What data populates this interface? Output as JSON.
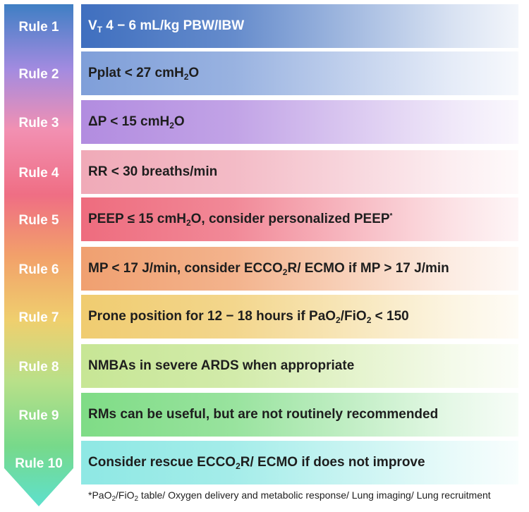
{
  "rules": [
    {
      "label": "Rule 1",
      "text": [
        "V",
        {
          "sub": "T"
        },
        " 4 − 6 mL/kg PBW/IBW"
      ]
    },
    {
      "label": "Rule 2",
      "text": [
        "Pplat < 27 cmH",
        {
          "sub": "2"
        },
        "O"
      ]
    },
    {
      "label": "Rule 3",
      "text": [
        "ΔP < 15 cmH",
        {
          "sub": "2"
        },
        "O"
      ]
    },
    {
      "label": "Rule 4",
      "text": [
        "RR < 30 breaths/min"
      ]
    },
    {
      "label": "Rule 5",
      "text": [
        "PEEP ≤ 15 cmH",
        {
          "sub": "2"
        },
        "O, consider personalized PEEP",
        {
          "sup": "*"
        }
      ]
    },
    {
      "label": "Rule 6",
      "text": [
        "MP < 17 J/min, consider ECCO",
        {
          "sub": "2"
        },
        "R/ ECMO if MP > 17 J/min"
      ]
    },
    {
      "label": "Rule 7",
      "text": [
        "Prone position for 12 − 18 hours if PaO",
        {
          "sub": "2"
        },
        "/FiO",
        {
          "sub": "2"
        },
        " < 150"
      ]
    },
    {
      "label": "Rule 8",
      "text": [
        "NMBAs in severe ARDS when appropriate"
      ]
    },
    {
      "label": "Rule 9",
      "text": [
        "RMs can be useful, but are not routinely recommended"
      ]
    },
    {
      "label": "Rule 10",
      "text": [
        "Consider rescue ECCO",
        {
          "sub": "2"
        },
        "R/ ECMO if does not improve"
      ]
    }
  ],
  "footnote": [
    "*PaO",
    {
      "sub": "2"
    },
    "/FiO",
    {
      "sub": "2"
    },
    " table/ Oxygen delivery and metabolic response/ Lung imaging/ Lung recruitment"
  ],
  "colors": {
    "arrow_gradient": [
      "#3f7fc4",
      "#a38be0",
      "#f290b2",
      "#ef6e84",
      "#f2a06a",
      "#efcf6e",
      "#b9e089",
      "#77d98a",
      "#5ee0cd"
    ],
    "row_colors": [
      "#3f6fbf",
      "#7f9fd9",
      "#b28ce0",
      "#f0aab8",
      "#ee6c7e",
      "#f0a070",
      "#f0cc70",
      "#c7e695",
      "#7fdc86",
      "#8ee8e4"
    ]
  }
}
